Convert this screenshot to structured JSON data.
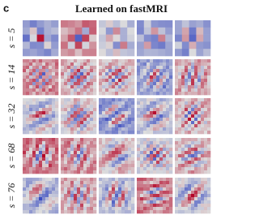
{
  "panel_label": "c",
  "title": "Learned on fastMRI",
  "rows": [
    {
      "label": "s = 5"
    },
    {
      "label": "s = 14"
    },
    {
      "label": "s = 32"
    },
    {
      "label": "s = 68"
    },
    {
      "label": "s = 76"
    }
  ]
}
